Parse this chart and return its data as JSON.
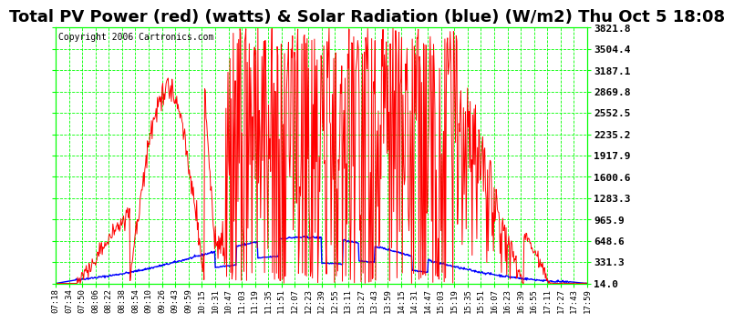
{
  "title": "Total PV Power (red) (watts) & Solar Radiation (blue) (W/m2) Thu Oct 5 18:08",
  "copyright": "Copyright 2006 Cartronics.com",
  "y_ticks": [
    14.0,
    331.3,
    648.6,
    965.9,
    1283.3,
    1600.6,
    1917.9,
    2235.2,
    2552.5,
    2869.8,
    3187.1,
    3504.4,
    3821.8
  ],
  "y_min": 14.0,
  "y_max": 3821.8,
  "x_labels": [
    "07:18",
    "07:34",
    "07:50",
    "08:06",
    "08:22",
    "08:38",
    "08:54",
    "09:10",
    "09:26",
    "09:43",
    "09:59",
    "10:15",
    "10:31",
    "10:47",
    "11:03",
    "11:19",
    "11:35",
    "11:51",
    "12:07",
    "12:23",
    "12:39",
    "12:55",
    "13:11",
    "13:27",
    "13:43",
    "13:59",
    "14:15",
    "14:31",
    "14:47",
    "15:03",
    "15:19",
    "15:35",
    "15:51",
    "16:07",
    "16:23",
    "16:39",
    "16:55",
    "17:11",
    "17:27",
    "17:43",
    "17:59"
  ],
  "bg_color": "#ffffff",
  "plot_bg": "#ffffff",
  "grid_color": "#00ff00",
  "red_color": "#ff0000",
  "blue_color": "#0000ff",
  "title_fontsize": 13,
  "copyright_fontsize": 7,
  "tick_fontsize": 6.5,
  "ytick_fontsize": 8
}
